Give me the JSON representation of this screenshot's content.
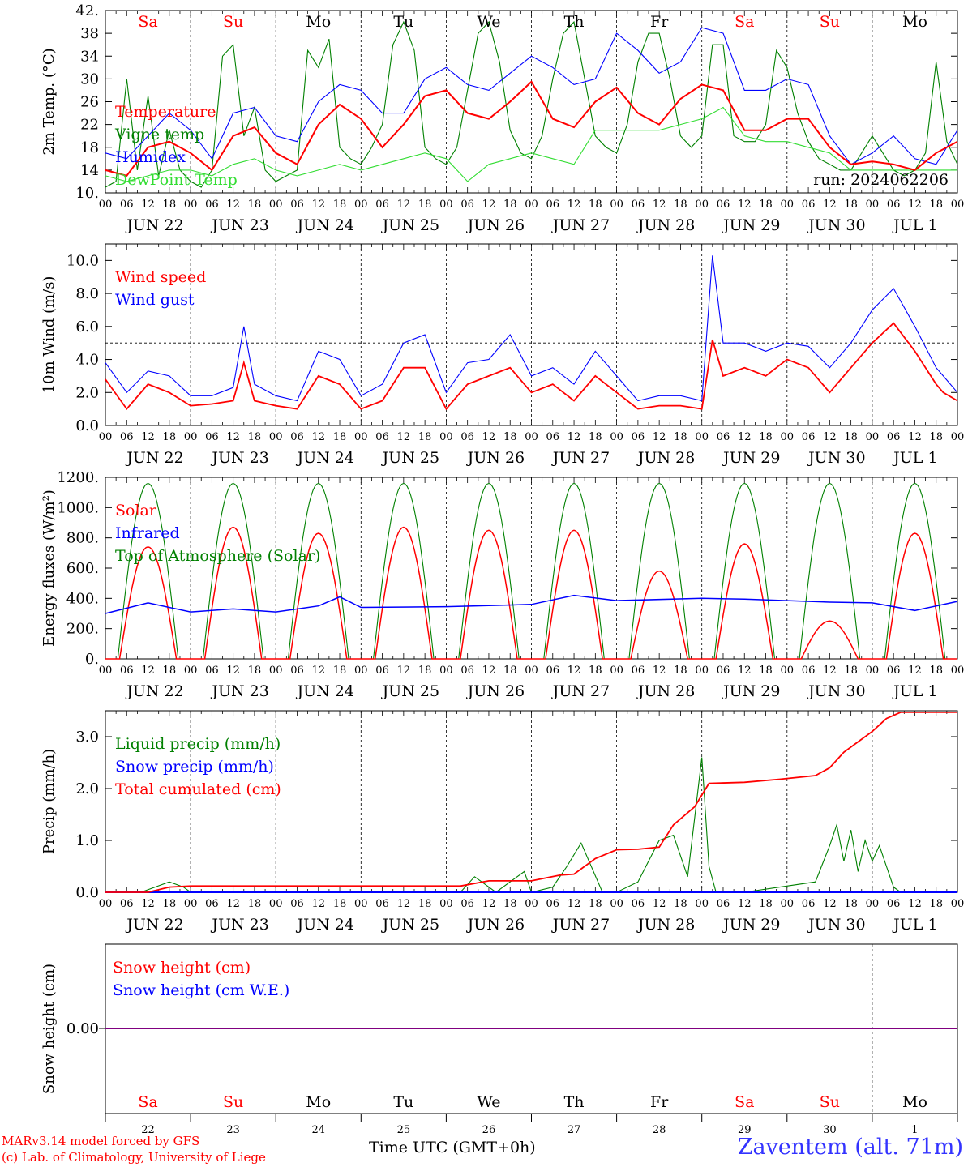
{
  "colors": {
    "red": "#ff0000",
    "green": "#008000",
    "blue": "#0000ff",
    "lightgreen": "#33dd33",
    "purple": "#800080"
  },
  "day_names": [
    "Sa",
    "Su",
    "Mo",
    "Tu",
    "We",
    "Th",
    "Fr",
    "Sa",
    "Su",
    "Mo"
  ],
  "weekend_flags": [
    true,
    true,
    false,
    false,
    false,
    false,
    false,
    true,
    true,
    false
  ],
  "date_labels": [
    "JUN 22",
    "JUN 23",
    "JUN 24",
    "JUN 25",
    "JUN 26",
    "JUN 27",
    "JUN 28",
    "JUN 29",
    "JUN 30",
    "JUL  1"
  ],
  "day_numbers": [
    "22",
    "23",
    "24",
    "25",
    "26",
    "27",
    "28",
    "29",
    "30",
    "1"
  ],
  "hour_labels": [
    "00",
    "06",
    "12",
    "18"
  ],
  "x_axis_title": "Time UTC (GMT+0h)",
  "run_label": "run: 2024062206",
  "credit_line1": "MARv3.14 model forced by GFS",
  "credit_line2": "(c) Lab. of Climatology, University of Liege",
  "station": "Zaventem (alt. 71m)",
  "chart_data": [
    {
      "type": "line",
      "ylabel": "2m Temp. (°C)",
      "ylim": [
        10,
        42
      ],
      "yticks": [
        "10.",
        "14",
        "18",
        "22",
        "26",
        "30",
        "34",
        "38",
        "42."
      ],
      "x_unit": "hours since Jun 22 00 UTC",
      "grid": "dashed vertical day lines",
      "series": [
        {
          "name": "Temperature",
          "color": "red",
          "x": [
            0,
            6,
            12,
            18,
            24,
            30,
            36,
            42,
            48,
            54,
            60,
            66,
            72,
            78,
            84,
            90,
            96,
            102,
            108,
            114,
            120,
            126,
            132,
            138,
            144,
            150,
            156,
            162,
            168,
            174,
            180,
            186,
            192,
            198,
            204,
            210,
            216,
            222,
            228,
            234,
            240
          ],
          "values": [
            14,
            13,
            18,
            19,
            17,
            14,
            20,
            21.5,
            17,
            15,
            22,
            25.5,
            23,
            18,
            22,
            27,
            28,
            24,
            23,
            26,
            29.5,
            23,
            21.5,
            26,
            28.5,
            24,
            22,
            26.5,
            29,
            28,
            21,
            21,
            23,
            23,
            18,
            15,
            15.5,
            15,
            14,
            17,
            19
          ]
        },
        {
          "name": "Vigne temp",
          "color": "green",
          "x": [
            0,
            3,
            6,
            9,
            12,
            15,
            18,
            21,
            24,
            27,
            30,
            33,
            36,
            39,
            42,
            45,
            48,
            51,
            54,
            57,
            60,
            63,
            66,
            69,
            72,
            75,
            78,
            81,
            84,
            87,
            90,
            93,
            96,
            99,
            102,
            105,
            108,
            111,
            114,
            117,
            120,
            123,
            126,
            129,
            132,
            135,
            138,
            141,
            144,
            147,
            150,
            153,
            156,
            159,
            162,
            165,
            168,
            171,
            174,
            177,
            180,
            183,
            186,
            189,
            192,
            195,
            198,
            201,
            204,
            207,
            210,
            213,
            216,
            219,
            222,
            225,
            228,
            231,
            234,
            237,
            240
          ],
          "values": [
            11,
            12,
            30,
            14,
            27,
            13,
            21,
            14,
            12,
            11,
            14,
            34,
            36,
            20,
            25,
            14,
            12,
            13,
            14,
            35,
            32,
            37,
            18,
            16,
            15,
            18,
            22,
            36,
            40,
            35,
            18,
            16,
            15,
            18,
            28,
            38,
            40,
            33,
            21,
            17,
            16,
            20,
            30,
            38,
            40,
            30,
            20,
            18,
            17,
            22,
            33,
            38,
            38,
            30,
            20,
            18,
            20,
            36,
            36,
            20,
            19,
            19,
            22,
            35,
            32,
            24,
            19,
            16,
            15,
            14,
            14,
            17,
            20,
            17,
            14,
            13,
            14,
            17,
            33,
            19,
            15
          ]
        },
        {
          "name": "Humidex",
          "color": "blue",
          "x": [
            0,
            6,
            12,
            18,
            24,
            30,
            36,
            42,
            48,
            54,
            60,
            66,
            72,
            78,
            84,
            90,
            96,
            102,
            108,
            114,
            120,
            126,
            132,
            138,
            144,
            150,
            156,
            162,
            168,
            174,
            180,
            186,
            192,
            198,
            204,
            210,
            216,
            222,
            228,
            234,
            240
          ],
          "values": [
            17,
            16,
            20,
            24,
            21,
            16,
            24,
            25,
            20,
            19,
            26,
            29,
            28,
            24,
            24,
            30,
            32,
            29,
            28,
            31,
            34,
            32,
            29,
            30,
            38,
            35,
            31,
            33,
            39,
            38,
            28,
            28,
            30,
            29,
            20,
            15,
            17,
            20,
            16,
            15,
            21
          ]
        },
        {
          "name": "DewPoint Temp",
          "color": "lightgreen",
          "x": [
            0,
            6,
            12,
            18,
            24,
            30,
            36,
            42,
            48,
            54,
            60,
            66,
            72,
            78,
            84,
            90,
            96,
            102,
            108,
            114,
            120,
            126,
            132,
            138,
            144,
            150,
            156,
            162,
            168,
            174,
            180,
            186,
            192,
            198,
            204,
            210,
            216,
            222,
            228,
            234,
            240
          ],
          "values": [
            13,
            12,
            13,
            14,
            14,
            13,
            15,
            16,
            14,
            13,
            14,
            15,
            14,
            15,
            16,
            17,
            16,
            12,
            15,
            16,
            17,
            16,
            15,
            21,
            21,
            21,
            21,
            22,
            23,
            25,
            20,
            19,
            19,
            18,
            17,
            14,
            14,
            14,
            14,
            14,
            14
          ]
        }
      ]
    },
    {
      "type": "line",
      "ylabel": "10m Wind (m/s)",
      "ylim": [
        0,
        11
      ],
      "yticks": [
        "0.0",
        "2.0",
        "4.0",
        "6.0",
        "8.0",
        "10.0"
      ],
      "reference_line": 5,
      "series": [
        {
          "name": "Wind speed",
          "color": "red",
          "x": [
            0,
            6,
            12,
            18,
            24,
            30,
            36,
            39,
            42,
            48,
            54,
            60,
            66,
            72,
            78,
            84,
            90,
            96,
            102,
            108,
            114,
            120,
            126,
            132,
            138,
            144,
            150,
            156,
            162,
            168,
            171,
            174,
            180,
            186,
            192,
            198,
            204,
            210,
            216,
            222,
            228,
            234,
            236,
            240
          ],
          "values": [
            2.8,
            1.0,
            2.5,
            2.0,
            1.2,
            1.3,
            1.5,
            3.8,
            1.5,
            1.2,
            1.0,
            3.0,
            2.5,
            1.0,
            1.5,
            3.5,
            3.5,
            1.0,
            2.5,
            3.0,
            3.5,
            2.0,
            2.5,
            1.5,
            3.0,
            2.0,
            1.0,
            1.2,
            1.2,
            1.0,
            5.2,
            3.0,
            3.5,
            3.0,
            4.0,
            3.5,
            2.0,
            3.5,
            5.0,
            6.2,
            4.5,
            2.5,
            2.0,
            1.5
          ]
        },
        {
          "name": "Wind gust",
          "color": "blue",
          "x": [
            0,
            6,
            12,
            18,
            24,
            30,
            36,
            39,
            42,
            48,
            54,
            60,
            66,
            72,
            78,
            84,
            90,
            96,
            102,
            108,
            114,
            120,
            126,
            132,
            138,
            144,
            150,
            156,
            162,
            168,
            171,
            174,
            180,
            186,
            192,
            198,
            204,
            210,
            216,
            222,
            228,
            234,
            236,
            240
          ],
          "values": [
            3.8,
            2.0,
            3.3,
            3.0,
            1.8,
            1.8,
            2.3,
            6.0,
            2.5,
            1.8,
            1.5,
            4.5,
            4.0,
            1.8,
            2.5,
            5.0,
            5.5,
            2.0,
            3.8,
            4.0,
            5.5,
            3.0,
            3.5,
            2.5,
            4.5,
            3.0,
            1.5,
            1.8,
            1.8,
            1.5,
            10.3,
            5.0,
            5.0,
            4.5,
            5.0,
            4.8,
            3.5,
            5.0,
            7.0,
            8.3,
            6.0,
            3.5,
            3.0,
            2.0
          ]
        }
      ]
    },
    {
      "type": "line",
      "ylabel": "Energy fluxes (W/m²)",
      "ylim": [
        0,
        1200
      ],
      "yticks": [
        "0.",
        "200.",
        "400.",
        "600.",
        "800.",
        "1000.",
        "1200."
      ],
      "series": [
        {
          "name": "Solar",
          "color": "red",
          "daily_peak": [
            740,
            870,
            830,
            870,
            850,
            850,
            580,
            760,
            250,
            830
          ],
          "x_note": "daily cycles peak near 12 UTC"
        },
        {
          "name": "Infrared",
          "color": "blue",
          "x": [
            0,
            12,
            24,
            36,
            48,
            60,
            66,
            72,
            96,
            120,
            132,
            144,
            168,
            180,
            192,
            204,
            216,
            228,
            240
          ],
          "values": [
            300,
            370,
            310,
            330,
            310,
            350,
            410,
            340,
            345,
            360,
            420,
            385,
            400,
            395,
            385,
            375,
            370,
            320,
            380
          ]
        },
        {
          "name": "Top of Atmosphere (Solar)",
          "color": "green",
          "daily_peak": [
            1160,
            1160,
            1160,
            1160,
            1160,
            1160,
            1160,
            1160,
            1160,
            1160
          ]
        }
      ]
    },
    {
      "type": "line",
      "ylabel": "Precip (mm/h)",
      "ylim": [
        0,
        3.5
      ],
      "yticks": [
        "0.0",
        "1.0",
        "2.0",
        "3.0"
      ],
      "series": [
        {
          "name": "Liquid precip (mm/h)",
          "color": "green",
          "x": [
            0,
            10,
            14,
            18,
            20,
            22,
            24,
            100,
            104,
            106,
            110,
            118,
            120,
            126,
            130,
            134,
            140,
            144,
            150,
            156,
            160,
            164,
            168,
            170,
            172,
            180,
            190,
            200,
            204,
            206,
            208,
            210,
            212,
            214,
            216,
            218,
            220,
            222,
            224,
            228,
            240
          ],
          "values": [
            0,
            0,
            0.1,
            0.2,
            0.15,
            0.1,
            0,
            0,
            0.3,
            0.2,
            0,
            0.4,
            0,
            0.1,
            0.5,
            0.95,
            0,
            0,
            0.2,
            1.0,
            1.1,
            0.3,
            2.6,
            0.5,
            0,
            0,
            0.1,
            0.2,
            0.9,
            1.3,
            0.6,
            1.2,
            0.4,
            1.0,
            0.6,
            0.9,
            0.5,
            0.1,
            0,
            0,
            0
          ]
        },
        {
          "name": "Snow precip (mm/h)",
          "color": "blue",
          "x": [
            0,
            240
          ],
          "values": [
            0,
            0
          ]
        },
        {
          "name": "Total cumulated (cm)",
          "color": "red",
          "x": [
            0,
            12,
            18,
            24,
            100,
            108,
            120,
            128,
            132,
            138,
            144,
            150,
            156,
            160,
            166,
            170,
            180,
            190,
            200,
            204,
            208,
            212,
            216,
            220,
            224,
            228,
            240
          ],
          "values": [
            0,
            0,
            0.1,
            0.12,
            0.12,
            0.22,
            0.22,
            0.33,
            0.35,
            0.65,
            0.82,
            0.83,
            0.87,
            1.3,
            1.65,
            2.1,
            2.12,
            2.18,
            2.25,
            2.4,
            2.7,
            2.9,
            3.1,
            3.35,
            3.47,
            3.47,
            3.47
          ]
        }
      ]
    },
    {
      "type": "line",
      "ylabel": "Snow height (cm)",
      "yticks": [
        "0.00"
      ],
      "series": [
        {
          "name": "Snow height (cm)",
          "color": "red",
          "x": [
            0,
            240
          ],
          "values": [
            0,
            0
          ]
        },
        {
          "name": "Snow height (cm W.E.)",
          "color": "blue",
          "x": [
            0,
            240
          ],
          "values": [
            0,
            0
          ]
        }
      ]
    }
  ]
}
